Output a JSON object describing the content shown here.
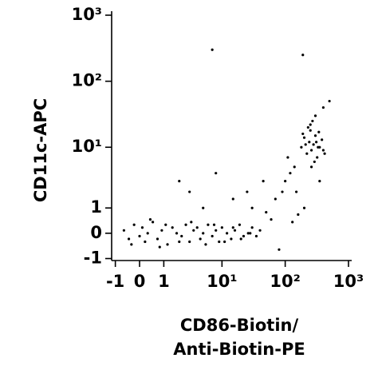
{
  "chart_data": {
    "type": "scatter",
    "xlabel": [
      "CD86-Biotin/",
      "Anti-Biotin-PE"
    ],
    "ylabel": "CD11c-APC",
    "xscale": "asinh",
    "yscale": "asinh",
    "xlim": [
      -1.2,
      1000
    ],
    "ylim": [
      -1.1,
      1000
    ],
    "xticks": [
      -1,
      0,
      1,
      {
        "value": 10,
        "label": "10¹"
      },
      {
        "value": 100,
        "label": "10²"
      },
      {
        "value": 1000,
        "label": "10³"
      }
    ],
    "yticks": [
      -1,
      0,
      1,
      {
        "value": 10,
        "label": "10¹"
      },
      {
        "value": 100,
        "label": "10²"
      },
      {
        "value": 1000,
        "label": "10³"
      }
    ],
    "color": "#000000",
    "x": [
      -0.6,
      -0.4,
      -0.2,
      0,
      0.1,
      0.2,
      0.3,
      0.5,
      0.7,
      0.9,
      1.2,
      1.5,
      1.8,
      2.2,
      2.6,
      3,
      3.5,
      4,
      4.5,
      5,
      6,
      7,
      8,
      9,
      10,
      12,
      14,
      16,
      19,
      22,
      26,
      30,
      35,
      40,
      -0.3,
      0.4,
      0.8,
      1.1,
      2,
      3.2,
      5.5,
      7.5,
      11,
      15,
      20,
      28,
      180,
      200,
      220,
      240,
      250,
      260,
      280,
      300,
      320,
      350,
      380,
      400,
      230,
      270,
      290,
      310,
      210,
      340,
      260,
      300,
      420,
      190,
      250,
      330,
      50,
      70,
      90,
      100,
      120,
      140,
      60,
      80,
      30,
      25,
      45,
      150,
      110,
      200,
      350,
      400,
      500,
      15,
      8,
      5,
      3,
      2,
      130,
      160,
      7,
      190
    ],
    "y": [
      0.1,
      -0.2,
      0.3,
      -0.1,
      0.2,
      -0.3,
      0,
      0.4,
      -0.2,
      0.1,
      -0.4,
      0.2,
      0,
      -0.1,
      0.3,
      -0.3,
      0.1,
      0.2,
      -0.2,
      0,
      0.3,
      -0.1,
      0.1,
      -0.3,
      0.2,
      0,
      -0.2,
      0.1,
      0.3,
      -0.1,
      0,
      0.2,
      -0.1,
      0.1,
      -0.4,
      0.5,
      -0.5,
      0.3,
      -0.3,
      0.4,
      -0.4,
      0.3,
      -0.3,
      0.2,
      -0.2,
      0,
      10,
      14,
      8,
      12,
      18,
      9,
      11,
      15,
      7,
      10,
      13,
      9,
      20,
      25,
      6,
      12,
      11,
      17,
      5,
      30,
      8,
      16,
      22,
      10,
      0.8,
      1.5,
      2,
      3,
      4,
      5,
      0.5,
      -0.6,
      1,
      2,
      3,
      2,
      7,
      1,
      3,
      40,
      50,
      1.5,
      4,
      1,
      2,
      3,
      0.4,
      0.7,
      300,
      250
    ]
  }
}
